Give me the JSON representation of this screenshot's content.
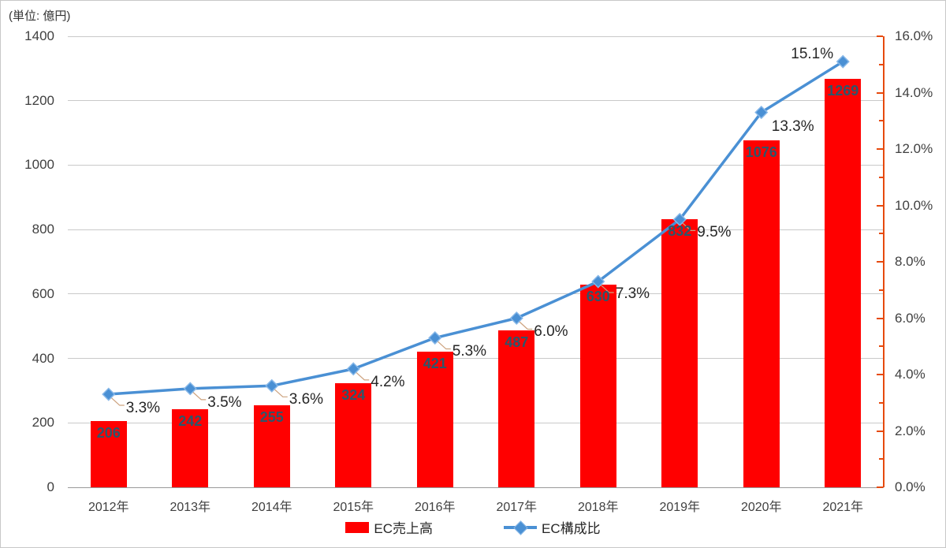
{
  "chart_data": {
    "type": "combo-bar-line",
    "title": "",
    "unit_label": "(単位: 億円)",
    "categories": [
      "2012年",
      "2013年",
      "2014年",
      "2015年",
      "2016年",
      "2017年",
      "2018年",
      "2019年",
      "2020年",
      "2021年"
    ],
    "series": [
      {
        "name": "EC売上高",
        "type": "bar",
        "axis": "left",
        "color": "#ff0000",
        "values": [
          206,
          242,
          255,
          324,
          421,
          487,
          630,
          832,
          1076,
          1269
        ],
        "labels": [
          "206",
          "242",
          "255",
          "324",
          "421",
          "487",
          "630",
          "832",
          "1076",
          "1269"
        ]
      },
      {
        "name": "EC構成比",
        "type": "line",
        "axis": "right",
        "color": "#4a90d4",
        "marker": "diamond",
        "values": [
          3.3,
          3.5,
          3.6,
          4.2,
          5.3,
          6.0,
          7.3,
          9.5,
          13.3,
          15.1
        ],
        "labels": [
          "3.3%",
          "3.5%",
          "3.6%",
          "4.2%",
          "5.3%",
          "6.0%",
          "7.3%",
          "9.5%",
          "13.3%",
          "15.1%"
        ]
      }
    ],
    "left_axis": {
      "min": 0,
      "max": 1400,
      "step": 200,
      "tick_labels": [
        "0",
        "200",
        "400",
        "600",
        "800",
        "1000",
        "1200",
        "1400"
      ]
    },
    "right_axis": {
      "min": 0,
      "max": 16,
      "step": 2,
      "minor_step": 1,
      "color": "#e64a0e",
      "tick_labels": [
        "0.0%",
        "2.0%",
        "4.0%",
        "6.0%",
        "8.0%",
        "10.0%",
        "12.0%",
        "14.0%",
        "16.0%"
      ]
    },
    "grid": true,
    "legend_position": "bottom"
  },
  "colors": {
    "bar": "#ff0000",
    "line": "#4a90d4",
    "marker_edge": "#86b7e8",
    "right_axis": "#e64a0e",
    "gridline": "#c9c9c9",
    "baseline": "#9a9a9a",
    "bar_label": "#2d566b",
    "leader_line": "#cda27e",
    "text": "#404040"
  }
}
